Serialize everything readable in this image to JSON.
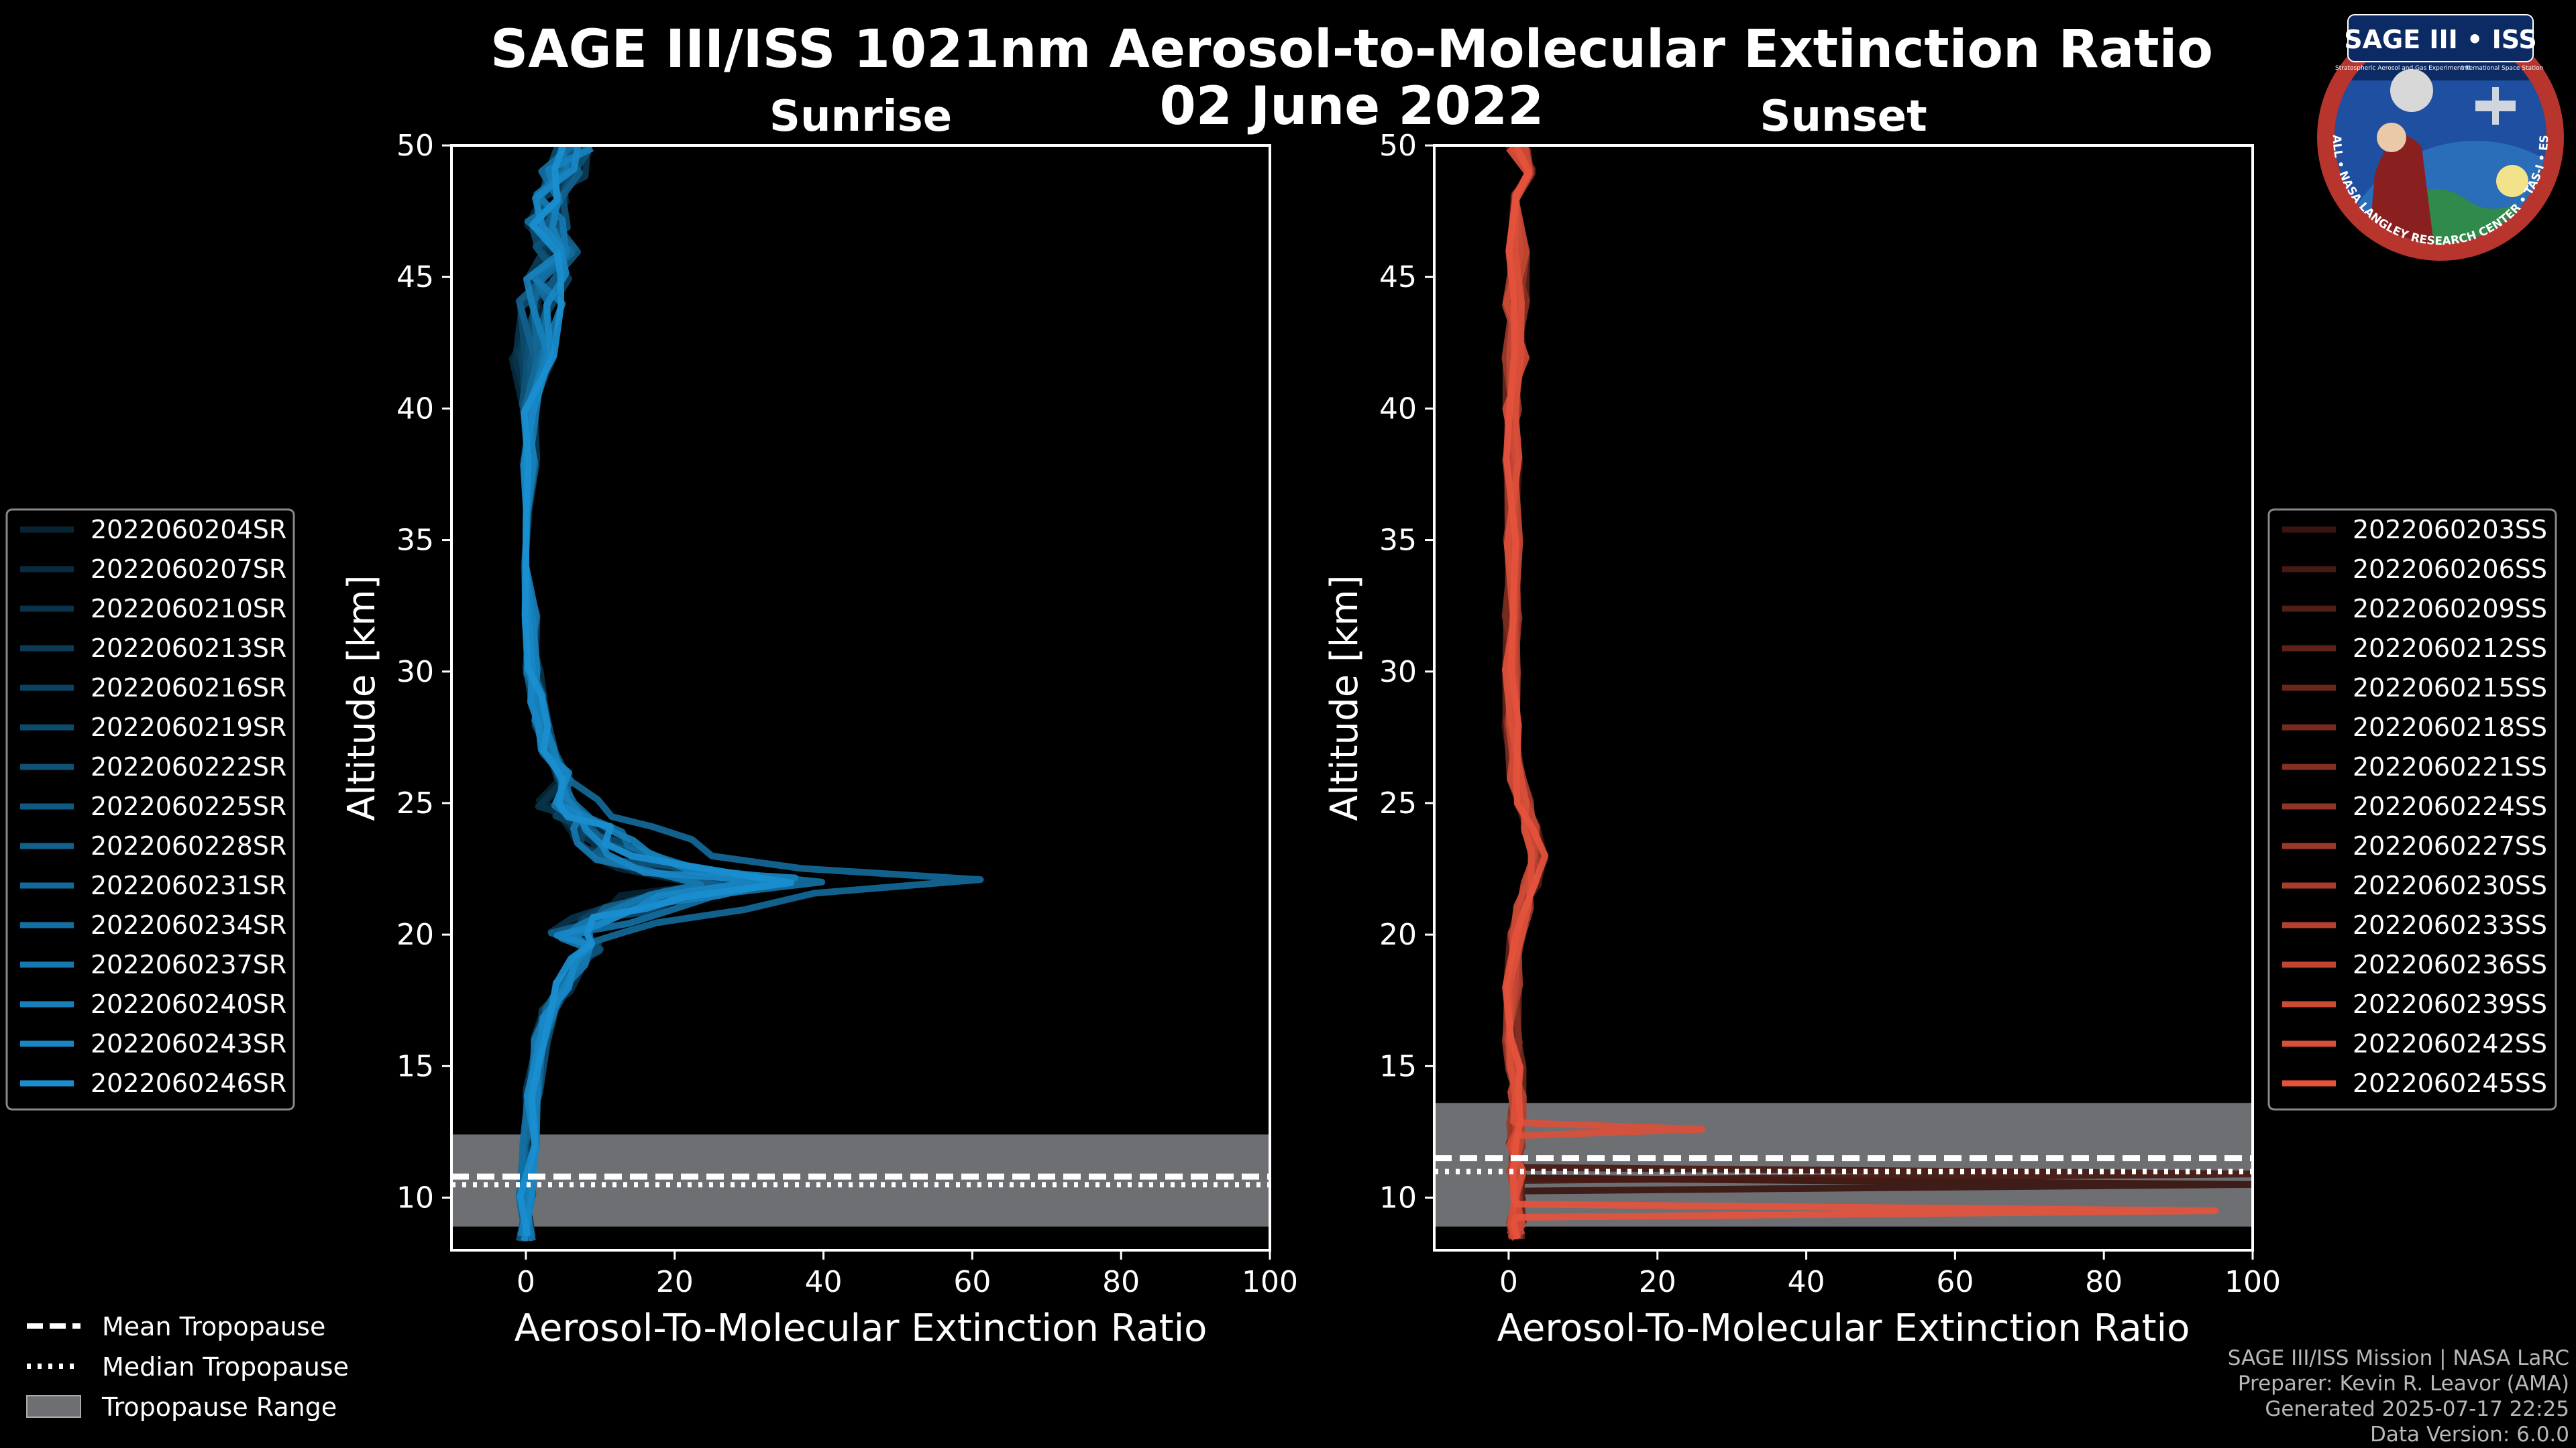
{
  "title": "SAGE III/ISS 1021nm Aerosol-to-Molecular Extinction Ratio",
  "date": "02 June 2022",
  "chart_data": [
    {
      "type": "line",
      "panel": "left",
      "title": "Sunrise",
      "xlabel": "Aerosol-To-Molecular Extinction Ratio",
      "ylabel": "Altitude [km]",
      "xlim": [
        -10,
        100
      ],
      "ylim": [
        8,
        50
      ],
      "xticks": [
        0,
        20,
        40,
        60,
        80,
        100
      ],
      "yticks": [
        10,
        15,
        20,
        25,
        30,
        35,
        40,
        45,
        50
      ],
      "line_color": "#1a8fd0",
      "tropopause": {
        "mean": 10.8,
        "median": 10.9,
        "range": [
          8.9,
          12.4
        ]
      },
      "legend": [
        "2022060204SR",
        "2022060207SR",
        "2022060210SR",
        "2022060213SR",
        "2022060216SR",
        "2022060219SR",
        "2022060222SR",
        "2022060225SR",
        "2022060228SR",
        "2022060231SR",
        "2022060234SR",
        "2022060237SR",
        "2022060240SR",
        "2022060243SR",
        "2022060246SR"
      ],
      "series_shape": {
        "alt": [
          8.5,
          10,
          12,
          14,
          16,
          17,
          18,
          19,
          19.5,
          20,
          20.5,
          21,
          21.5,
          22,
          22.5,
          23,
          23.5,
          24,
          24.5,
          25,
          26,
          27,
          28,
          29,
          30,
          32,
          34,
          36,
          38,
          40,
          42,
          44,
          45,
          46,
          47,
          48,
          49,
          50
        ],
        "peak_value": [
          0,
          0,
          0.5,
          1,
          2,
          3,
          5,
          7,
          9,
          12,
          18,
          28,
          40,
          62,
          36,
          25,
          22,
          18,
          13,
          9,
          5,
          3,
          2,
          1.5,
          1,
          0.5,
          0.5,
          0.5,
          0.5,
          0.5,
          1,
          2,
          3,
          4,
          3,
          4,
          5,
          6
        ]
      },
      "series": [
        {
          "name": "2022060204SR",
          "peak": 22
        },
        {
          "name": "2022060207SR",
          "peak": 28
        },
        {
          "name": "2022060210SR",
          "peak": 24
        },
        {
          "name": "2022060213SR",
          "peak": 30
        },
        {
          "name": "2022060216SR",
          "peak": 26
        },
        {
          "name": "2022060219SR",
          "peak": 33
        },
        {
          "name": "2022060222SR",
          "peak": 29
        },
        {
          "name": "2022060225SR",
          "peak": 36
        },
        {
          "name": "2022060228SR",
          "peak": 27
        },
        {
          "name": "2022060231SR",
          "peak": 62
        },
        {
          "name": "2022060234SR",
          "peak": 41
        },
        {
          "name": "2022060237SR",
          "peak": 25
        },
        {
          "name": "2022060240SR",
          "peak": 38
        },
        {
          "name": "2022060243SR",
          "peak": 30
        },
        {
          "name": "2022060246SR",
          "peak": 34
        }
      ]
    },
    {
      "type": "line",
      "panel": "right",
      "title": "Sunset",
      "xlabel": "Aerosol-To-Molecular Extinction Ratio",
      "ylabel": "Altitude [km]",
      "xlim": [
        -10,
        100
      ],
      "ylim": [
        8,
        50
      ],
      "xticks": [
        0,
        20,
        40,
        60,
        80,
        100
      ],
      "yticks": [
        10,
        15,
        20,
        25,
        30,
        35,
        40,
        45,
        50
      ],
      "line_color": "#e5533d",
      "tropopause": {
        "mean": 11.5,
        "median": 11.4,
        "range": [
          8.9,
          13.6
        ]
      },
      "legend": [
        "2022060203SS",
        "2022060206SS",
        "2022060209SS",
        "2022060212SS",
        "2022060215SS",
        "2022060218SS",
        "2022060221SS",
        "2022060224SS",
        "2022060227SS",
        "2022060230SS",
        "2022060233SS",
        "2022060236SS",
        "2022060239SS",
        "2022060242SS",
        "2022060245SS"
      ],
      "series_shape": {
        "alt": [
          8.5,
          9,
          10,
          11,
          12,
          13,
          14,
          15,
          16,
          18,
          20,
          21,
          22,
          23,
          24,
          25,
          26,
          28,
          30,
          32,
          35,
          38,
          40,
          42,
          44,
          46,
          48,
          49,
          50
        ],
        "base_value": [
          1,
          1,
          1,
          1,
          1,
          1,
          1,
          1,
          0.5,
          0.5,
          1,
          2,
          3,
          4,
          3,
          2,
          1,
          0.5,
          0.5,
          0.5,
          0.5,
          0.5,
          0.5,
          1,
          1,
          1,
          1.5,
          2,
          1
        ]
      },
      "spikes": [
        {
          "series": "2022060203SS",
          "alt": 10.5,
          "value": 100
        },
        {
          "series": "2022060206SS",
          "alt": 10.9,
          "value": 100
        },
        {
          "series": "2022060242SS",
          "alt": 12.6,
          "value": 26
        },
        {
          "series": "2022060245SS",
          "alt": 9.5,
          "value": 95
        }
      ],
      "series": [
        {
          "name": "2022060203SS"
        },
        {
          "name": "2022060206SS"
        },
        {
          "name": "2022060209SS"
        },
        {
          "name": "2022060212SS"
        },
        {
          "name": "2022060215SS"
        },
        {
          "name": "2022060218SS"
        },
        {
          "name": "2022060221SS"
        },
        {
          "name": "2022060224SS"
        },
        {
          "name": "2022060227SS"
        },
        {
          "name": "2022060230SS"
        },
        {
          "name": "2022060233SS"
        },
        {
          "name": "2022060236SS"
        },
        {
          "name": "2022060239SS"
        },
        {
          "name": "2022060242SS"
        },
        {
          "name": "2022060245SS"
        }
      ]
    }
  ],
  "bottom_legend": {
    "mean": "Mean Tropopause",
    "median": "Median Tropopause",
    "range": "Tropopause Range"
  },
  "credits": {
    "line1": "SAGE III/ISS Mission | NASA LaRC",
    "line2": "Preparer: Kevin R. Leavor (AMA)",
    "line3": "Generated 2025-07-17 22:25",
    "line4": "Data Version: 6.0.0"
  },
  "badge": {
    "top": "SAGE III • ISS",
    "desc_left": "Stratospheric Aerosol and Gas Experiment III",
    "desc_right": "International Space Station",
    "ring": "BALL • NASA LANGLEY RESEARCH CENTER • TAS-I • ESA"
  }
}
